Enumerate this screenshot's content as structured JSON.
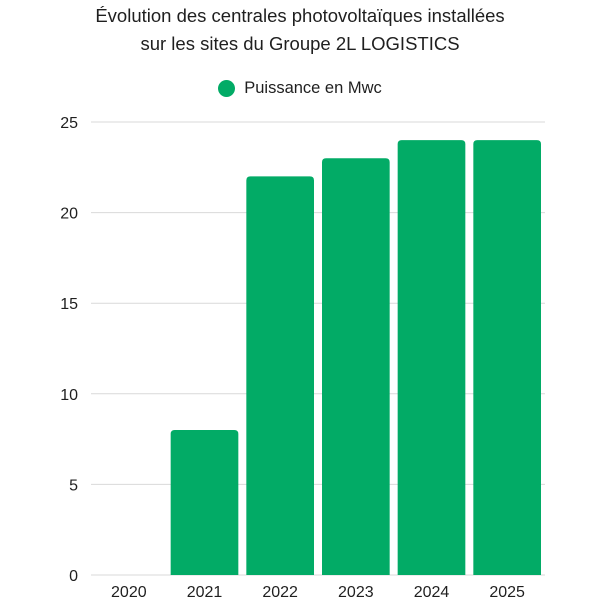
{
  "colors": {
    "bar": "#02ab66",
    "grid": "#d9d9d9",
    "text": "#1f1f1f"
  },
  "chart_data": {
    "type": "bar",
    "title_lines": [
      "Évolution des centrales photovoltaïques installées",
      "sur les sites du  Groupe 2L LOGISTICS"
    ],
    "categories": [
      "2020",
      "2021",
      "2022",
      "2023",
      "2024",
      "2025"
    ],
    "series": [
      {
        "name": "Puissance en Mwc",
        "values": [
          0,
          8,
          22,
          23,
          24,
          24
        ]
      }
    ],
    "yticks": [
      "0",
      "5",
      "10",
      "15",
      "20",
      "25"
    ],
    "ylim": [
      0,
      25
    ],
    "grid": true,
    "legend_position": "top-center"
  }
}
